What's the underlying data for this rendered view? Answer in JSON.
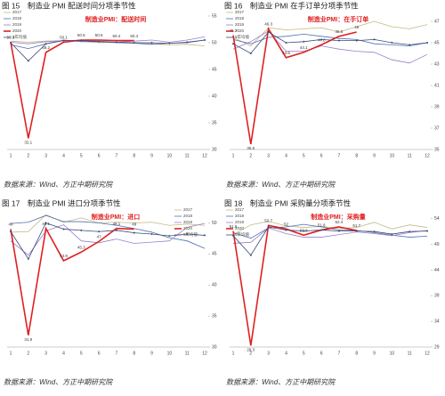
{
  "chart_data": [
    {
      "type": "line",
      "title": "图 15　制造业 PMI 配送时间分项季节性",
      "annotation": "制造业PMI：配送时间",
      "source": "数据来源：Wind、方正中期研究院",
      "legend": "upper left",
      "categories": [
        "1",
        "2",
        "3",
        "4",
        "5",
        "6",
        "7",
        "8",
        "9",
        "10",
        "11",
        "12"
      ],
      "ylim": [
        30,
        55
      ],
      "yticks": [
        30,
        35,
        40,
        45,
        50,
        55
      ],
      "series": [
        {
          "name": "2017",
          "color": "#c3b983",
          "values": [
            50.3,
            50.1,
            50.3,
            50.4,
            50.3,
            50.0,
            50.1,
            49.9,
            49.8,
            49.6,
            49.7,
            49.4
          ]
        },
        {
          "name": "2018",
          "color": "#4f6fb0",
          "values": [
            49.6,
            48.9,
            49.8,
            50.5,
            50.2,
            50.2,
            50.0,
            49.9,
            49.7,
            49.9,
            50.0,
            50.5
          ]
        },
        {
          "name": "2019",
          "color": "#9b7fc7",
          "values": [
            50.1,
            49.8,
            50.2,
            50.4,
            50.5,
            50.3,
            50.1,
            50.3,
            50.5,
            50.1,
            50.5,
            51.1
          ]
        },
        {
          "name": "2020",
          "color": "#e02020",
          "values": [
            50.1,
            32.1,
            48.2,
            50.1,
            50.5,
            50.5,
            50.4,
            50.4,
            null,
            null,
            null,
            null
          ]
        },
        {
          "name": "5年均值",
          "color": "#3a4a7a",
          "values": [
            50.0,
            46.6,
            49.8,
            50.4,
            50.4,
            50.2,
            50.1,
            50.0,
            50.0,
            49.9,
            50.1,
            50.5
          ]
        }
      ]
    },
    {
      "type": "line",
      "title": "图 16　制造业 PMI 在手订单分项季节性",
      "annotation": "制造业PMI：在手订单",
      "source": "数据来源：Wind、方正中期研究院",
      "legend": "upper left",
      "categories": [
        "1",
        "2",
        "3",
        "4",
        "5",
        "6",
        "7",
        "8",
        "9",
        "10",
        "11",
        "12"
      ],
      "ylim": [
        35,
        47.5
      ],
      "yticks": [
        35,
        37,
        39,
        41,
        43,
        45,
        47
      ],
      "series": [
        {
          "name": "2017",
          "color": "#c3b983",
          "values": [
            45.5,
            44.7,
            46.4,
            46.2,
            46.3,
            46.4,
            46.0,
            46.5,
            47.0,
            46.5,
            46.3,
            46.7
          ]
        },
        {
          "name": "2018",
          "color": "#4f6fb0",
          "values": [
            45.3,
            44.9,
            45.5,
            45.6,
            45.8,
            45.6,
            45.4,
            45.3,
            44.9,
            44.8,
            44.7,
            45.0
          ]
        },
        {
          "name": "2019",
          "color": "#9b7fc7",
          "values": [
            44.4,
            45.1,
            46.1,
            44.2,
            44.2,
            44.7,
            44.4,
            44.2,
            44.1,
            43.4,
            43.1,
            43.9
          ]
        },
        {
          "name": "2020",
          "color": "#e02020",
          "values": [
            45.7,
            35.5,
            46.3,
            43.6,
            44.1,
            44.8,
            45.6,
            46,
            null,
            null,
            null,
            null
          ]
        },
        {
          "name": "5年均值",
          "color": "#3a4a7a",
          "values": [
            44.9,
            44.0,
            46.0,
            45.0,
            45.1,
            45.3,
            45.2,
            45.2,
            45.3,
            45.0,
            44.8,
            45.0
          ]
        }
      ]
    },
    {
      "type": "line",
      "title": "图 17　制造业 PMI 进口分项季节性",
      "annotation": "制造业PMI：进口",
      "source": "数据来源：Wind、方正中期研究院",
      "legend": "upper right",
      "categories": [
        "1",
        "2",
        "3",
        "4",
        "5",
        "6",
        "7",
        "8",
        "9",
        "10",
        "11",
        "12"
      ],
      "ylim": [
        30,
        51.5
      ],
      "yticks": [
        30,
        35,
        40,
        45,
        50
      ],
      "series": [
        {
          "name": "2017",
          "color": "#c3b983",
          "values": [
            48.5,
            48.6,
            51.3,
            50.1,
            50.8,
            50.0,
            50.1,
            50.0,
            50.1,
            49.6,
            49.8,
            49.6
          ]
        },
        {
          "name": "2018",
          "color": "#4f6fb0",
          "values": [
            49.9,
            50.1,
            51.2,
            50.2,
            50.2,
            50.0,
            49.6,
            49.1,
            48.5,
            47.6,
            47.1,
            45.9
          ]
        },
        {
          "name": "2019",
          "color": "#9b7fc7",
          "values": [
            47.1,
            44.8,
            48.7,
            49.7,
            47.1,
            46.8,
            47.4,
            46.7,
            46.9,
            47.1,
            49.3,
            49.9
          ]
        },
        {
          "name": "2020",
          "color": "#e02020",
          "values": [
            49,
            31.9,
            49.1,
            43.9,
            45.3,
            47,
            49.1,
            49,
            null,
            null,
            null,
            null
          ]
        },
        {
          "name": "5年均值",
          "color": "#3a4a7a",
          "values": [
            48.6,
            44.2,
            50.0,
            49.0,
            48.8,
            48.6,
            48.8,
            48.4,
            48.2,
            47.9,
            48.2,
            48.0
          ]
        }
      ]
    },
    {
      "type": "line",
      "title": "图 18　制造业 PMI 采购量分项季节性",
      "annotation": "制造业PMI：采购量",
      "source": "数据来源：Wind、方正中期研究院",
      "legend": "upper left",
      "categories": [
        "1",
        "2",
        "3",
        "4",
        "5",
        "6",
        "7",
        "8",
        "9",
        "10",
        "11",
        "12"
      ],
      "ylim": [
        29,
        55
      ],
      "yticks": [
        29,
        34,
        39,
        44,
        49,
        54
      ],
      "series": [
        {
          "name": "2017",
          "color": "#c3b983",
          "values": [
            50.9,
            52.8,
            53.5,
            52.6,
            52.3,
            52.5,
            52.1,
            52.3,
            53.3,
            52.0,
            52.8,
            52.3
          ]
        },
        {
          "name": "2018",
          "color": "#4f6fb0",
          "values": [
            51.3,
            50.2,
            52.2,
            52.4,
            52.9,
            52.4,
            51.8,
            51.7,
            51.3,
            50.8,
            50.4,
            50.6
          ]
        },
        {
          "name": "2019",
          "color": "#9b7fc7",
          "values": [
            49.2,
            49.4,
            52.2,
            51.1,
            50.4,
            50.4,
            50.9,
            51.4,
            51.1,
            50.7,
            51.3,
            51.7
          ]
        },
        {
          "name": "2020",
          "color": "#e02020",
          "values": [
            51.6,
            29.3,
            52.7,
            52,
            50.8,
            51.8,
            52.4,
            51.7,
            null,
            null,
            null,
            null
          ]
        },
        {
          "name": "5年均值",
          "color": "#3a4a7a",
          "values": [
            50.7,
            46.9,
            52.4,
            51.8,
            51.6,
            51.8,
            51.6,
            51.6,
            51.5,
            51.0,
            51.5,
            51.6
          ]
        }
      ]
    }
  ]
}
